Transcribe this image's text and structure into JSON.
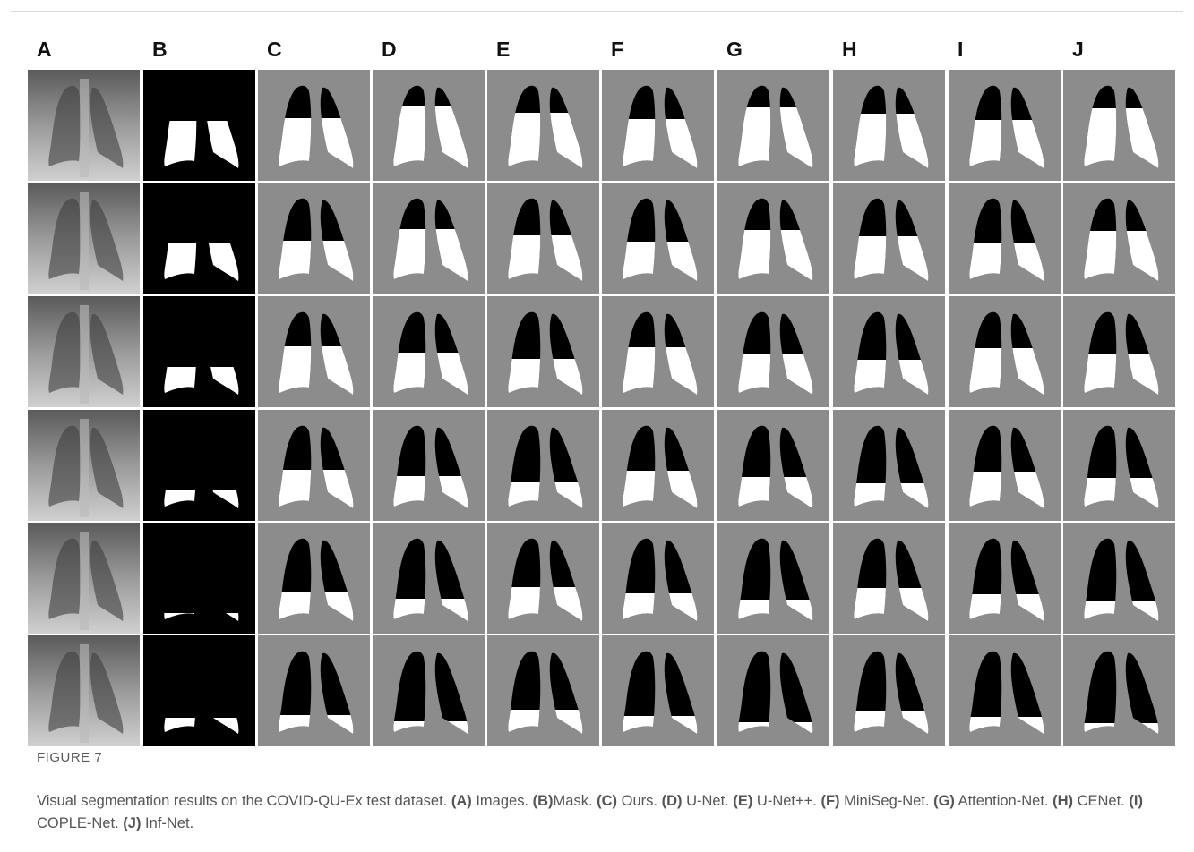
{
  "figure": {
    "columns": [
      "A",
      "B",
      "C",
      "D",
      "E",
      "F",
      "G",
      "H",
      "I",
      "J"
    ],
    "label": "FIGURE 7",
    "caption": {
      "intro": "Visual segmentation results on the COVID-QU-Ex test dataset.",
      "items": [
        {
          "key": "(A)",
          "text": " Images."
        },
        {
          "key": "(B)",
          "text": "Mask."
        },
        {
          "key": "(C)",
          "text": " Ours."
        },
        {
          "key": "(D)",
          "text": " U-Net."
        },
        {
          "key": "(E)",
          "text": " U-Net++."
        },
        {
          "key": "(F)",
          "text": " MiniSeg-Net."
        },
        {
          "key": "(G)",
          "text": " Attention-Net."
        },
        {
          "key": "(H)",
          "text": " CENet."
        },
        {
          "key": "(I)",
          "text": " COPLE-Net."
        },
        {
          "key": "(J)",
          "text": " Inf-Net."
        }
      ]
    }
  }
}
